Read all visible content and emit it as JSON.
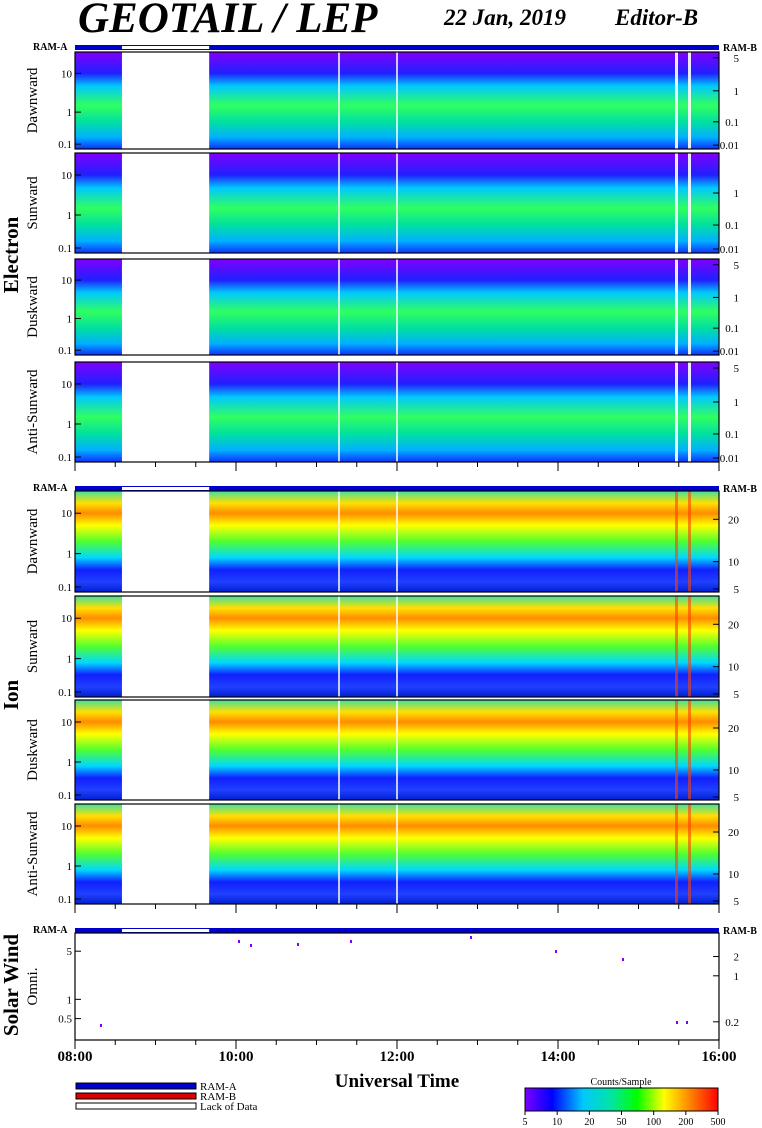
{
  "header": {
    "title": "GEOTAIL / LEP",
    "date": "22 Jan, 2019",
    "editor": "Editor-B"
  },
  "chart_data": {
    "type": "heatmap",
    "x_axis": {
      "label": "Universal Time",
      "range": [
        "08:00",
        "16:00"
      ],
      "ticks": [
        "08:00",
        "10:00",
        "12:00",
        "14:00",
        "16:00"
      ]
    },
    "ram_labels": {
      "left": "RAM-A",
      "right": "RAM-B"
    },
    "data_gap": {
      "start": "08:35",
      "end": "09:40",
      "status": "Lack of Data"
    },
    "groups": [
      {
        "name": "Electron",
        "panels": [
          {
            "label": "Dawnward",
            "left_ticks": [
              "10",
              "1",
              "0.1"
            ],
            "right_ticks": [
              "5",
              "1",
              "0.1",
              "0.01"
            ]
          },
          {
            "label": "Sunward",
            "left_ticks": [
              "10",
              "1",
              "0.1"
            ],
            "right_ticks": [
              "1",
              "0.1",
              "0.01"
            ]
          },
          {
            "label": "Duskward",
            "left_ticks": [
              "10",
              "1",
              "0.1"
            ],
            "right_ticks": [
              "5",
              "1",
              "0.1",
              "0.01"
            ]
          },
          {
            "label": "Anti-Sunward",
            "left_ticks": [
              "10",
              "1",
              "0.1"
            ],
            "right_ticks": [
              "5",
              "1",
              "0.1",
              "0.01"
            ]
          }
        ]
      },
      {
        "name": "Ion",
        "panels": [
          {
            "label": "Dawnward",
            "left_ticks": [
              "10",
              "1",
              "0.1"
            ],
            "right_ticks": [
              "20",
              "10",
              "5"
            ]
          },
          {
            "label": "Sunward",
            "left_ticks": [
              "10",
              "1",
              "0.1"
            ],
            "right_ticks": [
              "20",
              "10",
              "5"
            ]
          },
          {
            "label": "Duskward",
            "left_ticks": [
              "10",
              "1",
              "0.1"
            ],
            "right_ticks": [
              "20",
              "10",
              "5"
            ]
          },
          {
            "label": "Anti-Sunward",
            "left_ticks": [
              "10",
              "1",
              "0.1"
            ],
            "right_ticks": [
              "20",
              "10",
              "5"
            ]
          }
        ]
      },
      {
        "name": "Solar Wind",
        "panels": [
          {
            "label": "Omni.",
            "left_ticks": [
              "5",
              "1",
              "0.5"
            ],
            "right_ticks": [
              "2",
              "1",
              "0.2"
            ]
          }
        ]
      }
    ],
    "legend": {
      "entries": [
        {
          "label": "RAM-A",
          "color": "#0000cc"
        },
        {
          "label": "RAM-B",
          "color": "#dd0000"
        },
        {
          "label": "Lack of Data",
          "color": "#ffffff"
        }
      ]
    },
    "colorbar": {
      "title": "Counts/Sample",
      "ticks": [
        "5",
        "10",
        "20",
        "50",
        "100",
        "200",
        "500"
      ],
      "colors": [
        "#7a00ff",
        "#0000ff",
        "#00c8ff",
        "#00e6a0",
        "#00ff00",
        "#ffff00",
        "#ff8000",
        "#ff0000"
      ]
    }
  }
}
